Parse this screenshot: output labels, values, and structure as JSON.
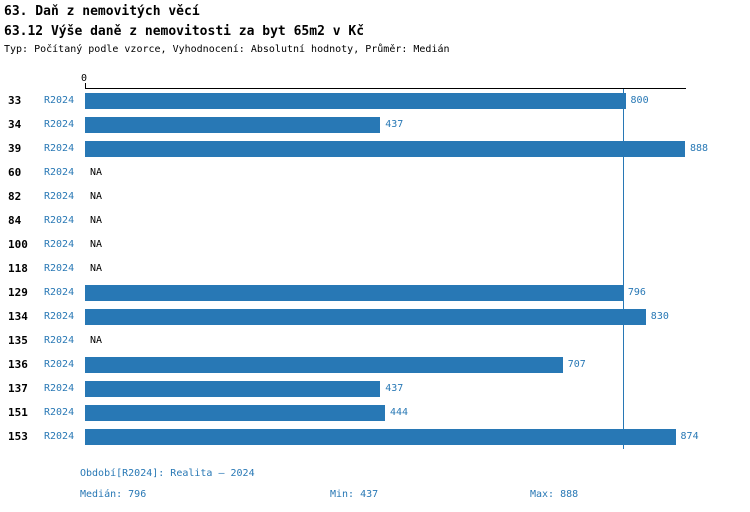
{
  "header": {
    "title": "63. Daň z nemovitých věcí",
    "subtitle": "63.12 Výše daně z nemovitosti za byt 65m2 v Kč",
    "meta": "Typ: Počítaný podle vzorce, Vyhodnocení: Absolutní hodnoty, Průměr: Medián"
  },
  "colors": {
    "accent": "#2878b5",
    "axis": "#000000"
  },
  "chart_data": {
    "type": "bar",
    "orientation": "horizontal",
    "title": "63.12 Výše daně z nemovitosti za byt 65m2 v Kč",
    "xlim": [
      0,
      888
    ],
    "axis_origin_label": "0",
    "grid": false,
    "bar_color": "#2878b5",
    "median_line_value": 796,
    "period_label": "R2024",
    "na_label": "NA",
    "categories": [
      "33",
      "34",
      "39",
      "60",
      "82",
      "84",
      "100",
      "118",
      "129",
      "134",
      "135",
      "136",
      "137",
      "151",
      "153"
    ],
    "values": [
      800,
      437,
      888,
      null,
      null,
      null,
      null,
      null,
      796,
      830,
      null,
      707,
      437,
      444,
      874
    ],
    "rows": [
      {
        "id": "33",
        "value": 800
      },
      {
        "id": "34",
        "value": 437
      },
      {
        "id": "39",
        "value": 888
      },
      {
        "id": "60",
        "value": null
      },
      {
        "id": "82",
        "value": null
      },
      {
        "id": "84",
        "value": null
      },
      {
        "id": "100",
        "value": null
      },
      {
        "id": "118",
        "value": null
      },
      {
        "id": "129",
        "value": 796
      },
      {
        "id": "134",
        "value": 830
      },
      {
        "id": "135",
        "value": null
      },
      {
        "id": "136",
        "value": 707
      },
      {
        "id": "137",
        "value": 437
      },
      {
        "id": "151",
        "value": 444
      },
      {
        "id": "153",
        "value": 874
      }
    ],
    "stats": {
      "median": 796,
      "min": 437,
      "max": 888
    }
  },
  "footer": {
    "period": "Období[R2024]: Realita – 2024",
    "median": "Medián: 796",
    "min": "Min: 437",
    "max": "Max: 888"
  }
}
